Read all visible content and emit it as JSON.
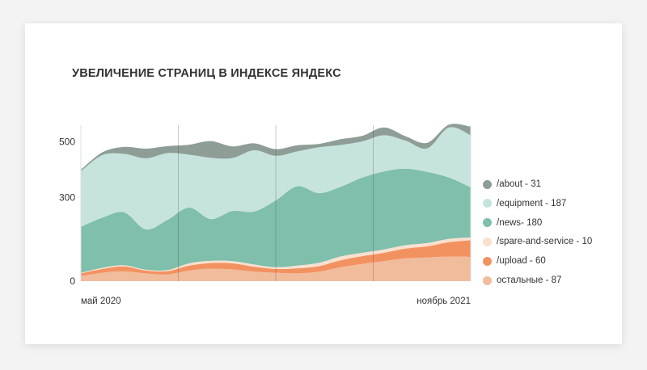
{
  "chart_data": {
    "type": "area",
    "title": "УВЕЛИЧЕНИЕ СТРАНИЦ В ИНДЕКСЕ ЯНДЕКС",
    "x_tick_labels": [
      "май 2020",
      "ноябрь 2021"
    ],
    "x_ticks_at": [
      0,
      18
    ],
    "y_ticks": [
      0,
      300,
      500
    ],
    "ylim": [
      0,
      560
    ],
    "grid": "vertical",
    "legend_position": "right",
    "stacked": true,
    "x": [
      0,
      1,
      2,
      3,
      4,
      5,
      6,
      7,
      8,
      9,
      10,
      11,
      12,
      13,
      14,
      15,
      16,
      17,
      18
    ],
    "series": [
      {
        "name": "остальные - 87",
        "color": "#f0bc9c",
        "values": [
          18,
          30,
          35,
          28,
          24,
          38,
          45,
          42,
          34,
          30,
          28,
          34,
          50,
          62,
          72,
          82,
          85,
          88,
          87
        ]
      },
      {
        "name": "/upload - 60",
        "color": "#f39261",
        "values": [
          10,
          14,
          18,
          10,
          12,
          18,
          20,
          22,
          18,
          14,
          18,
          20,
          25,
          28,
          30,
          35,
          40,
          52,
          60
        ]
      },
      {
        "name": "/spare-and-service - 10",
        "color": "#f9e0cf",
        "values": [
          2,
          4,
          4,
          3,
          4,
          8,
          8,
          8,
          8,
          6,
          10,
          12,
          14,
          12,
          12,
          12,
          12,
          12,
          10
        ]
      },
      {
        "name": "/news- 180",
        "color": "#7fbfac",
        "values": [
          165,
          180,
          190,
          145,
          180,
          200,
          150,
          180,
          190,
          240,
          285,
          250,
          250,
          270,
          280,
          275,
          255,
          220,
          180
        ]
      },
      {
        "name": "/equipment - 187",
        "color": "#c6e4dd",
        "values": [
          200,
          225,
          210,
          255,
          240,
          190,
          220,
          190,
          220,
          160,
          125,
          165,
          150,
          130,
          130,
          100,
          85,
          180,
          187
        ]
      },
      {
        "name": "/about - 31",
        "color": "#8e9e97",
        "values": [
          5,
          10,
          25,
          35,
          25,
          36,
          60,
          42,
          25,
          24,
          22,
          12,
          21,
          20,
          28,
          16,
          20,
          10,
          31
        ]
      }
    ]
  }
}
